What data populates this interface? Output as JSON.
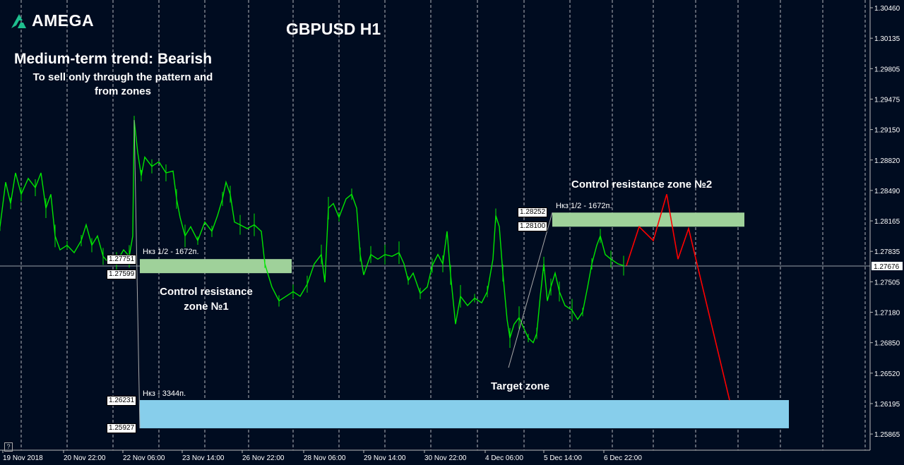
{
  "brand": {
    "name": "AMEGA",
    "logo_icon": "amega-logo-icon"
  },
  "annotations": {
    "title": "GBPUSD H1",
    "trend": "Medium-term trend: Bearish",
    "sell_note": "To sell only through the pattern and from zones",
    "zone1_label": "Control resistance zone №1",
    "zone2_label": "Control resistance zone №2",
    "target_label": "Target zone"
  },
  "colors": {
    "background": "#000c20",
    "candle": "#00e600",
    "zone_resistance": "#9fd19a",
    "zone_target": "#87ceeb",
    "forecast": "#ff0000",
    "grid": "#ffffff"
  },
  "chart_data": {
    "type": "line",
    "title": "GBPUSD H1",
    "symbol": "GBPUSD",
    "timeframe": "H1",
    "y_ticks": [
      "1.30460",
      "1.30135",
      "1.29805",
      "1.29475",
      "1.29150",
      "1.28820",
      "1.28490",
      "1.28165",
      "1.27835",
      "1.27505",
      "1.27180",
      "1.26850",
      "1.26520",
      "1.26195",
      "1.25865"
    ],
    "y_range": [
      1.2562,
      1.3062
    ],
    "x_ticks": [
      "19 Nov 2018",
      "20 Nov 22:00",
      "22 Nov 06:00",
      "23 Nov 14:00",
      "26 Nov 22:00",
      "28 Nov 06:00",
      "29 Nov 14:00",
      "30 Nov 22:00",
      "4 Dec 06:00",
      "5 Dec 14:00",
      "6 Dec 22:00"
    ],
    "current_price": "1.27676",
    "grid": "vertical dashed",
    "price_series": [
      [
        0,
        1.281
      ],
      [
        8,
        1.2858
      ],
      [
        15,
        1.2835
      ],
      [
        22,
        1.2868
      ],
      [
        30,
        1.2845
      ],
      [
        40,
        1.2862
      ],
      [
        50,
        1.2852
      ],
      [
        58,
        1.2868
      ],
      [
        65,
        1.283
      ],
      [
        72,
        1.2845
      ],
      [
        78,
        1.28
      ],
      [
        85,
        1.2785
      ],
      [
        95,
        1.279
      ],
      [
        105,
        1.2782
      ],
      [
        115,
        1.2795
      ],
      [
        122,
        1.2812
      ],
      [
        130,
        1.279
      ],
      [
        138,
        1.28
      ],
      [
        146,
        1.2778
      ],
      [
        155,
        1.277
      ],
      [
        165,
        1.2772
      ],
      [
        175,
        1.2785
      ],
      [
        183,
        1.2778
      ],
      [
        188,
        1.28
      ],
      [
        190,
        1.2925
      ],
      [
        195,
        1.289
      ],
      [
        200,
        1.2865
      ],
      [
        205,
        1.2885
      ],
      [
        215,
        1.2875
      ],
      [
        225,
        1.288
      ],
      [
        235,
        1.2868
      ],
      [
        245,
        1.287
      ],
      [
        250,
        1.284
      ],
      [
        255,
        1.282
      ],
      [
        262,
        1.28
      ],
      [
        270,
        1.281
      ],
      [
        280,
        1.2795
      ],
      [
        290,
        1.2815
      ],
      [
        300,
        1.2805
      ],
      [
        308,
        1.2822
      ],
      [
        315,
        1.284
      ],
      [
        320,
        1.2858
      ],
      [
        326,
        1.2845
      ],
      [
        332,
        1.2815
      ],
      [
        340,
        1.2812
      ],
      [
        350,
        1.2808
      ],
      [
        360,
        1.2812
      ],
      [
        370,
        1.2805
      ],
      [
        375,
        1.277
      ],
      [
        385,
        1.2745
      ],
      [
        395,
        1.273
      ],
      [
        405,
        1.2735
      ],
      [
        415,
        1.274
      ],
      [
        425,
        1.2735
      ],
      [
        435,
        1.2748
      ],
      [
        445,
        1.277
      ],
      [
        455,
        1.278
      ],
      [
        460,
        1.275
      ],
      [
        465,
        1.283
      ],
      [
        472,
        1.2835
      ],
      [
        480,
        1.282
      ],
      [
        490,
        1.284
      ],
      [
        498,
        1.2845
      ],
      [
        505,
        1.283
      ],
      [
        510,
        1.278
      ],
      [
        515,
        1.2758
      ],
      [
        525,
        1.278
      ],
      [
        535,
        1.2775
      ],
      [
        545,
        1.278
      ],
      [
        555,
        1.2778
      ],
      [
        565,
        1.2782
      ],
      [
        572,
        1.277
      ],
      [
        578,
        1.2752
      ],
      [
        585,
        1.276
      ],
      [
        595,
        1.2738
      ],
      [
        605,
        1.2745
      ],
      [
        612,
        1.2768
      ],
      [
        620,
        1.278
      ],
      [
        627,
        1.277
      ],
      [
        633,
        1.2805
      ],
      [
        638,
        1.2758
      ],
      [
        645,
        1.2705
      ],
      [
        652,
        1.2735
      ],
      [
        662,
        1.2725
      ],
      [
        672,
        1.2733
      ],
      [
        682,
        1.2728
      ],
      [
        690,
        1.274
      ],
      [
        698,
        1.2775
      ],
      [
        702,
        1.2822
      ],
      [
        707,
        1.281
      ],
      [
        712,
        1.276
      ],
      [
        718,
        1.271
      ],
      [
        722,
        1.269
      ],
      [
        728,
        1.2705
      ],
      [
        735,
        1.2712
      ],
      [
        742,
        1.27
      ],
      [
        748,
        1.269
      ],
      [
        755,
        1.2685
      ],
      [
        760,
        1.2695
      ],
      [
        765,
        1.2735
      ],
      [
        770,
        1.277
      ],
      [
        775,
        1.273
      ],
      [
        780,
        1.2745
      ],
      [
        786,
        1.276
      ],
      [
        792,
        1.274
      ],
      [
        800,
        1.2725
      ],
      [
        810,
        1.272
      ],
      [
        818,
        1.271
      ],
      [
        825,
        1.2718
      ],
      [
        832,
        1.2745
      ],
      [
        838,
        1.277
      ],
      [
        845,
        1.279
      ],
      [
        850,
        1.28
      ],
      [
        857,
        1.278
      ],
      [
        865,
        1.2775
      ],
      [
        875,
        1.277
      ],
      [
        883,
        1.2768
      ]
    ],
    "zones": [
      {
        "name": "Control resistance zone №1",
        "top": "1.27751",
        "bottom": "1.27599",
        "note": "Нкз 1/2 - 1672п."
      },
      {
        "name": "Control resistance zone №2",
        "top": "1.28252",
        "bottom": "1.28100",
        "note": "Нкз 1/2 - 1672п."
      },
      {
        "name": "Target zone",
        "top": "1.26231",
        "bottom": "1.25927",
        "note": "Нкз - 3344п."
      }
    ],
    "forecast_path": [
      [
        887,
        1.2768
      ],
      [
        905,
        1.281
      ],
      [
        925,
        1.2795
      ],
      [
        944,
        1.2845
      ],
      [
        960,
        1.2775
      ],
      [
        975,
        1.2808
      ],
      [
        1033,
        1.2623
      ]
    ]
  }
}
